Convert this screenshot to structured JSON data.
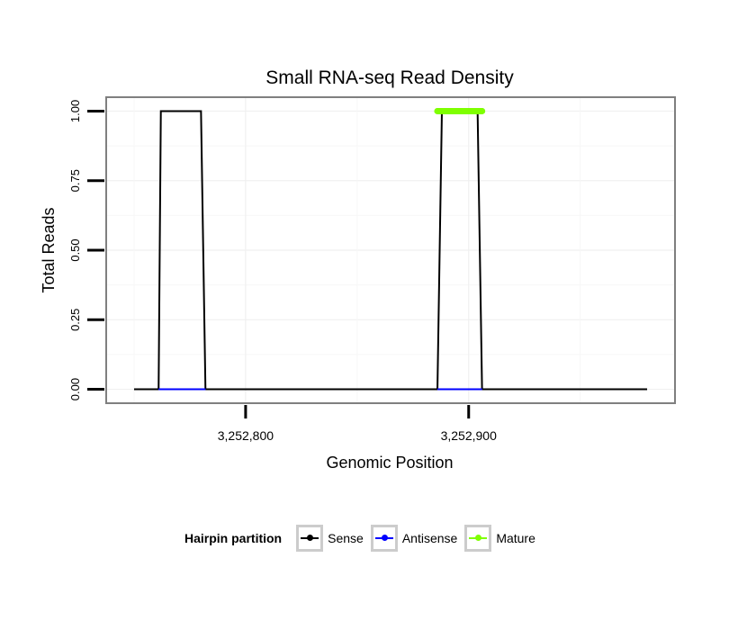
{
  "chart_data": {
    "type": "line",
    "title": "Small RNA-seq Read Density",
    "xlabel": "Genomic Position",
    "ylabel": "Total Reads",
    "xlim": [
      3252737.5,
      3252992.5
    ],
    "ylim": [
      -0.05,
      1.05
    ],
    "x_ticks": [
      3252800,
      3252900
    ],
    "x_tick_labels": [
      "3,252,800",
      "3,252,900"
    ],
    "y_ticks": [
      0,
      0.25,
      0.5,
      0.75,
      1
    ],
    "y_tick_labels": [
      "0.00",
      "0.25",
      "0.50",
      "0.75",
      "1.00"
    ],
    "grid": true,
    "legend_position": "bottom",
    "legend_title": "Hairpin partition",
    "series": [
      {
        "name": "Sense",
        "color": "#000000",
        "x": [
          3252750,
          3252761,
          3252762,
          3252780,
          3252782,
          3252886,
          3252888,
          3252904,
          3252906,
          3252980
        ],
        "y": [
          0,
          0,
          1,
          1,
          0,
          0,
          1,
          1,
          0,
          0
        ]
      },
      {
        "name": "Antisense",
        "color": "#0000ff",
        "x": [
          3252761,
          3252782,
          3252886,
          3252906
        ],
        "y": [
          0,
          0,
          0,
          0
        ],
        "segments": [
          [
            0,
            1
          ],
          [
            2,
            3
          ]
        ]
      },
      {
        "name": "Mature",
        "color": "#7fff00",
        "x": [
          3252886,
          3252906
        ],
        "y": [
          1,
          1
        ]
      }
    ]
  }
}
